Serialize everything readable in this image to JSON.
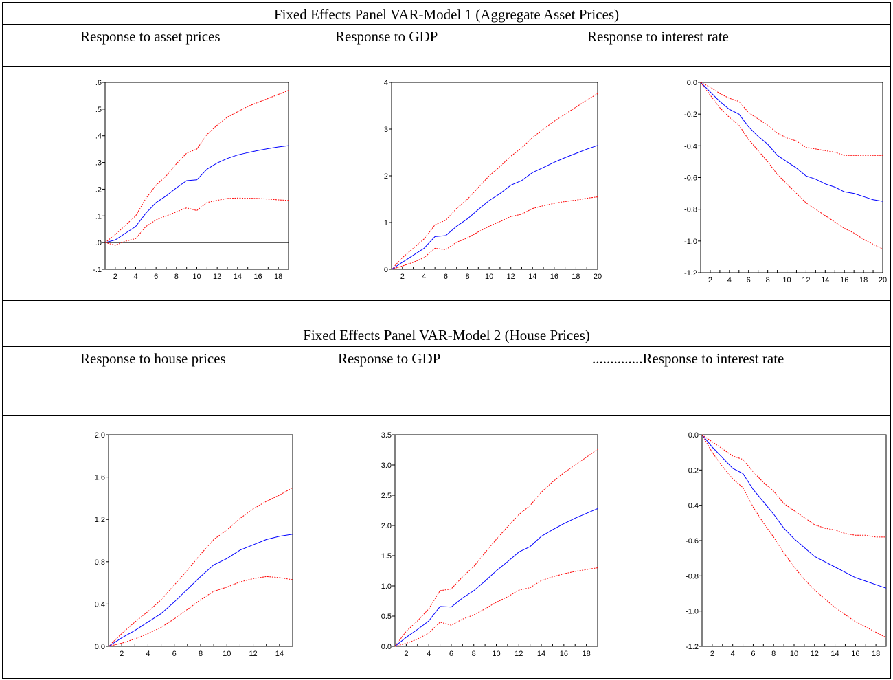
{
  "model1": {
    "title": "Fixed Effects Panel VAR-Model 1 (Aggregate Asset Prices)",
    "col1": "Response to asset prices",
    "col2": "Response to GDP",
    "col3": "Response to interest rate"
  },
  "model2": {
    "title": "Fixed Effects Panel VAR-Model 2 (House Prices)",
    "col1": "Response to house prices",
    "col2": "Response to GDP",
    "col3": "..............Response to interest rate"
  },
  "colors": {
    "response": "#0000ff",
    "band": "#ff0000",
    "axis": "#000000"
  },
  "chart_data": [
    {
      "type": "line",
      "x": [
        1,
        2,
        3,
        4,
        5,
        6,
        7,
        8,
        9,
        10,
        11,
        12,
        13,
        14,
        15,
        16,
        17,
        18,
        19
      ],
      "xlim": [
        1,
        19
      ],
      "ylim": [
        -0.1,
        0.6
      ],
      "xticks": [
        2,
        4,
        6,
        8,
        10,
        12,
        14,
        16,
        18
      ],
      "yticks": [
        -0.1,
        0,
        0.1,
        0.2,
        0.3,
        0.4,
        0.5,
        0.6
      ],
      "ytick_labels": [
        "-.1",
        ".0",
        ".1",
        ".2",
        ".3",
        ".4",
        ".5",
        ".6"
      ],
      "zero_line": true,
      "series": [
        {
          "role": "response",
          "values": [
            0,
            0.01,
            0.035,
            0.06,
            0.11,
            0.15,
            0.175,
            0.205,
            0.232,
            0.235,
            0.275,
            0.298,
            0.315,
            0.328,
            0.337,
            0.345,
            0.352,
            0.358,
            0.363
          ]
        },
        {
          "role": "upper",
          "values": [
            0,
            0.03,
            0.065,
            0.1,
            0.165,
            0.215,
            0.25,
            0.295,
            0.335,
            0.35,
            0.405,
            0.44,
            0.47,
            0.49,
            0.51,
            0.525,
            0.54,
            0.555,
            0.57
          ]
        },
        {
          "role": "lower",
          "values": [
            0,
            -0.01,
            0.005,
            0.015,
            0.06,
            0.085,
            0.1,
            0.115,
            0.13,
            0.12,
            0.15,
            0.158,
            0.165,
            0.167,
            0.166,
            0.165,
            0.163,
            0.16,
            0.158
          ]
        }
      ]
    },
    {
      "type": "line",
      "x": [
        1,
        2,
        3,
        4,
        5,
        6,
        7,
        8,
        9,
        10,
        11,
        12,
        13,
        14,
        15,
        16,
        17,
        18,
        19,
        20
      ],
      "xlim": [
        1,
        20
      ],
      "ylim": [
        0,
        4
      ],
      "xticks": [
        2,
        4,
        6,
        8,
        10,
        12,
        14,
        16,
        18,
        20
      ],
      "yticks": [
        0,
        1,
        2,
        3,
        4
      ],
      "ytick_labels": [
        "0",
        "1",
        "2",
        "3",
        "4"
      ],
      "zero_line": false,
      "series": [
        {
          "role": "response",
          "values": [
            0,
            0.15,
            0.3,
            0.45,
            0.7,
            0.72,
            0.92,
            1.08,
            1.28,
            1.47,
            1.62,
            1.8,
            1.9,
            2.07,
            2.18,
            2.29,
            2.39,
            2.48,
            2.57,
            2.65
          ]
        },
        {
          "role": "upper",
          "values": [
            0,
            0.25,
            0.45,
            0.65,
            0.95,
            1.05,
            1.3,
            1.5,
            1.75,
            2.0,
            2.2,
            2.42,
            2.6,
            2.82,
            3.0,
            3.17,
            3.32,
            3.47,
            3.62,
            3.76
          ]
        },
        {
          "role": "lower",
          "values": [
            0,
            0.07,
            0.15,
            0.25,
            0.45,
            0.42,
            0.58,
            0.67,
            0.8,
            0.92,
            1.02,
            1.13,
            1.18,
            1.3,
            1.36,
            1.41,
            1.45,
            1.48,
            1.52,
            1.55
          ]
        }
      ]
    },
    {
      "type": "line",
      "x": [
        1,
        2,
        3,
        4,
        5,
        6,
        7,
        8,
        9,
        10,
        11,
        12,
        13,
        14,
        15,
        16,
        17,
        18,
        19,
        20
      ],
      "xlim": [
        1,
        20
      ],
      "ylim": [
        -1.2,
        0
      ],
      "xticks": [
        2,
        4,
        6,
        8,
        10,
        12,
        14,
        16,
        18,
        20
      ],
      "yticks": [
        -1.2,
        -1.0,
        -0.8,
        -0.6,
        -0.4,
        -0.2,
        0
      ],
      "ytick_labels": [
        "-1.2",
        "-1.0",
        "-0.8",
        "-0.6",
        "-0.4",
        "-0.2",
        "0.0"
      ],
      "zero_line": false,
      "series": [
        {
          "role": "response",
          "values": [
            0,
            -0.06,
            -0.12,
            -0.17,
            -0.2,
            -0.28,
            -0.34,
            -0.39,
            -0.46,
            -0.5,
            -0.54,
            -0.59,
            -0.61,
            -0.64,
            -0.66,
            -0.69,
            -0.7,
            -0.72,
            -0.74,
            -0.75
          ]
        },
        {
          "role": "upper",
          "values": [
            0,
            -0.03,
            -0.07,
            -0.1,
            -0.12,
            -0.19,
            -0.23,
            -0.27,
            -0.32,
            -0.35,
            -0.37,
            -0.41,
            -0.42,
            -0.43,
            -0.44,
            -0.46,
            -0.46,
            -0.46,
            -0.46,
            -0.46
          ]
        },
        {
          "role": "lower",
          "values": [
            0,
            -0.08,
            -0.16,
            -0.22,
            -0.27,
            -0.36,
            -0.43,
            -0.5,
            -0.58,
            -0.64,
            -0.7,
            -0.76,
            -0.8,
            -0.84,
            -0.88,
            -0.92,
            -0.95,
            -0.99,
            -1.02,
            -1.05
          ]
        }
      ]
    },
    {
      "type": "line",
      "x": [
        1,
        2,
        3,
        4,
        5,
        6,
        7,
        8,
        9,
        10,
        11,
        12,
        13,
        14,
        15
      ],
      "xlim": [
        1,
        15
      ],
      "ylim": [
        0,
        2.0
      ],
      "xticks": [
        2,
        4,
        6,
        8,
        10,
        12,
        14
      ],
      "yticks": [
        0,
        0.4,
        0.8,
        1.2,
        1.6,
        2.0
      ],
      "ytick_labels": [
        "0.0",
        "0.4",
        "0.8",
        "1.2",
        "1.6",
        "2.0"
      ],
      "zero_line": false,
      "series": [
        {
          "role": "response",
          "values": [
            0,
            0.08,
            0.15,
            0.23,
            0.31,
            0.42,
            0.54,
            0.66,
            0.77,
            0.83,
            0.91,
            0.96,
            1.01,
            1.04,
            1.06
          ]
        },
        {
          "role": "upper",
          "values": [
            0,
            0.12,
            0.23,
            0.33,
            0.44,
            0.58,
            0.72,
            0.87,
            1.01,
            1.1,
            1.21,
            1.3,
            1.37,
            1.43,
            1.5
          ]
        },
        {
          "role": "lower",
          "values": [
            0,
            0.03,
            0.07,
            0.12,
            0.18,
            0.26,
            0.35,
            0.44,
            0.52,
            0.56,
            0.61,
            0.64,
            0.66,
            0.65,
            0.63
          ]
        }
      ]
    },
    {
      "type": "line",
      "x": [
        1,
        2,
        3,
        4,
        5,
        6,
        7,
        8,
        9,
        10,
        11,
        12,
        13,
        14,
        15,
        16,
        17,
        18,
        19
      ],
      "xlim": [
        1,
        19
      ],
      "ylim": [
        0,
        3.5
      ],
      "xticks": [
        2,
        4,
        6,
        8,
        10,
        12,
        14,
        16,
        18
      ],
      "yticks": [
        0,
        0.5,
        1.0,
        1.5,
        2.0,
        2.5,
        3.0,
        3.5
      ],
      "ytick_labels": [
        "0.0",
        "0.5",
        "1.0",
        "1.5",
        "2.0",
        "2.5",
        "3.0",
        "3.5"
      ],
      "zero_line": false,
      "series": [
        {
          "role": "response",
          "values": [
            0,
            0.15,
            0.28,
            0.42,
            0.66,
            0.65,
            0.8,
            0.92,
            1.08,
            1.25,
            1.4,
            1.56,
            1.65,
            1.82,
            1.93,
            2.03,
            2.12,
            2.2,
            2.28
          ]
        },
        {
          "role": "upper",
          "values": [
            0,
            0.25,
            0.42,
            0.62,
            0.92,
            0.95,
            1.15,
            1.32,
            1.55,
            1.77,
            1.98,
            2.18,
            2.33,
            2.55,
            2.72,
            2.87,
            3.0,
            3.13,
            3.26
          ]
        },
        {
          "role": "lower",
          "values": [
            0,
            0.05,
            0.12,
            0.22,
            0.4,
            0.35,
            0.45,
            0.52,
            0.62,
            0.73,
            0.82,
            0.93,
            0.97,
            1.09,
            1.15,
            1.2,
            1.24,
            1.27,
            1.3
          ]
        }
      ]
    },
    {
      "type": "line",
      "x": [
        1,
        2,
        3,
        4,
        5,
        6,
        7,
        8,
        9,
        10,
        11,
        12,
        13,
        14,
        15,
        16,
        17,
        18,
        19
      ],
      "xlim": [
        1,
        19
      ],
      "ylim": [
        -1.2,
        0
      ],
      "xticks": [
        2,
        4,
        6,
        8,
        10,
        12,
        14,
        16,
        18
      ],
      "yticks": [
        -1.2,
        -1.0,
        -0.8,
        -0.6,
        -0.4,
        -0.2,
        0
      ],
      "ytick_labels": [
        "-1.2",
        "-1.0",
        "-0.8",
        "-0.6",
        "-0.4",
        "-0.2",
        "0.0"
      ],
      "zero_line": false,
      "series": [
        {
          "role": "response",
          "values": [
            0,
            -0.07,
            -0.13,
            -0.19,
            -0.22,
            -0.31,
            -0.38,
            -0.45,
            -0.53,
            -0.59,
            -0.64,
            -0.69,
            -0.72,
            -0.75,
            -0.78,
            -0.81,
            -0.83,
            -0.85,
            -0.87
          ]
        },
        {
          "role": "upper",
          "values": [
            0,
            -0.04,
            -0.08,
            -0.12,
            -0.14,
            -0.21,
            -0.27,
            -0.32,
            -0.39,
            -0.43,
            -0.47,
            -0.51,
            -0.53,
            -0.54,
            -0.56,
            -0.57,
            -0.57,
            -0.58,
            -0.58
          ]
        },
        {
          "role": "lower",
          "values": [
            0,
            -0.1,
            -0.18,
            -0.25,
            -0.3,
            -0.41,
            -0.5,
            -0.58,
            -0.67,
            -0.75,
            -0.82,
            -0.88,
            -0.93,
            -0.98,
            -1.02,
            -1.06,
            -1.09,
            -1.12,
            -1.15
          ]
        }
      ]
    }
  ]
}
